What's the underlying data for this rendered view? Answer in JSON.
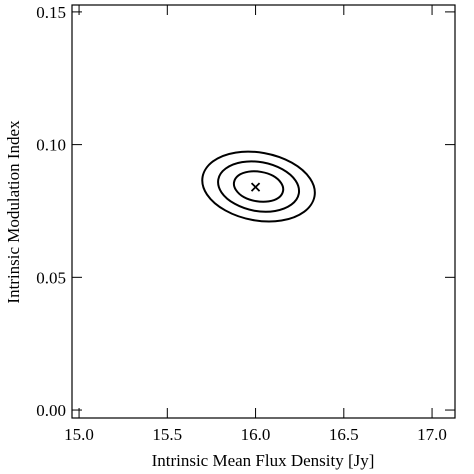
{
  "chart_data": {
    "type": "contour",
    "xlabel": "Intrinsic Mean Flux Density [Jy]",
    "ylabel": "Intrinsic Modulation Index",
    "xlim": [
      14.96,
      17.13
    ],
    "ylim": [
      -0.003,
      0.1526
    ],
    "xticks": [
      {
        "value": 15,
        "label": "15.0"
      },
      {
        "value": 15.5,
        "label": "15.5"
      },
      {
        "value": 16,
        "label": "16.0"
      },
      {
        "value": 16.5,
        "label": "16.5"
      },
      {
        "value": 17,
        "label": "17.0"
      }
    ],
    "yticks": [
      {
        "value": 0,
        "label": "0.00"
      },
      {
        "value": 0.05,
        "label": "0.05"
      },
      {
        "value": 0.1,
        "label": "0.10"
      },
      {
        "value": 0.15,
        "label": "0.15"
      }
    ],
    "color": "#000000",
    "contours": [
      {
        "x": [
          16.334,
          16.275,
          16.147,
          15.984,
          15.829,
          15.725,
          15.7,
          15.759,
          15.887,
          16.05,
          16.205,
          16.309
        ],
        "y": [
          0.0805,
          0.0747,
          0.0714,
          0.0716,
          0.0752,
          0.0812,
          0.0879,
          0.0937,
          0.097,
          0.0968,
          0.0932,
          0.0872
        ]
      },
      {
        "x": [
          16.245,
          16.203,
          16.111,
          15.993,
          15.882,
          15.807,
          15.789,
          15.831,
          15.923,
          16.041,
          16.152,
          16.227
        ],
        "y": [
          0.0815,
          0.0774,
          0.075,
          0.0751,
          0.0777,
          0.082,
          0.0869,
          0.091,
          0.0934,
          0.0933,
          0.0907,
          0.0864
        ]
      },
      {
        "x": [
          16.156,
          16.131,
          16.074,
          16.002,
          15.934,
          15.889,
          15.878,
          15.903,
          15.96,
          16.032,
          16.1,
          16.145
        ],
        "y": [
          0.0826,
          0.08,
          0.0786,
          0.0787,
          0.0802,
          0.0829,
          0.0858,
          0.0884,
          0.0898,
          0.0897,
          0.0882,
          0.0855
        ]
      }
    ],
    "marker": {
      "x": 16.0,
      "y": 0.084
    }
  }
}
